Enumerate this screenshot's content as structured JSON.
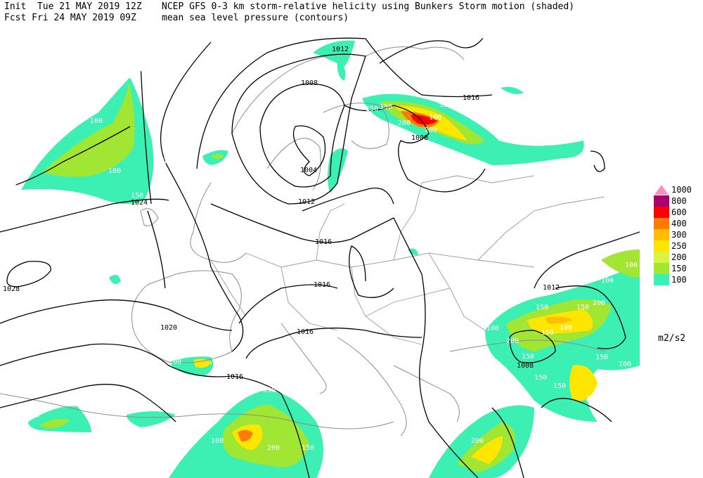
{
  "header": {
    "line1_left": "Init  Tue 21 MAY 2019 12Z",
    "line1_right": "NCEP GFS 0-3 km storm-relative helicity using Bunkers Storm motion (shaded)",
    "line2_left": "Fcst Fri 24 MAY 2019 09Z",
    "line2_right": "mean sea level pressure (contours)"
  },
  "legend": {
    "items": [
      {
        "label": "1000",
        "color": "#ff8ec4"
      },
      {
        "label": "800",
        "color": "#a8006e"
      },
      {
        "label": "600",
        "color": "#ff0000"
      },
      {
        "label": "400",
        "color": "#ff7a00"
      },
      {
        "label": "300",
        "color": "#ffbf00"
      },
      {
        "label": "250",
        "color": "#ffe600"
      },
      {
        "label": "200",
        "color": "#d9f542"
      },
      {
        "label": "150",
        "color": "#a0e632"
      },
      {
        "label": "100",
        "color": "#3cf0b4"
      }
    ],
    "units": "m2/s2"
  },
  "contour_labels": [
    "1012",
    "1008",
    "1016",
    "1004",
    "1008",
    "1012",
    "1024",
    "1016",
    "1016",
    "1028",
    "1020",
    "1016",
    "1016",
    "1012",
    "1008"
  ],
  "field_labels": [
    "100",
    "150",
    "200",
    "100",
    "100",
    "100",
    "150",
    "200",
    "150",
    "100",
    "100",
    "150",
    "100",
    "150",
    "100",
    "100",
    "200",
    "150",
    "100",
    "150",
    "200",
    "150",
    "200",
    "150",
    "200",
    "100",
    "100",
    "150",
    "100",
    "100",
    "200",
    "150",
    "100",
    "100",
    "150",
    "150"
  ]
}
